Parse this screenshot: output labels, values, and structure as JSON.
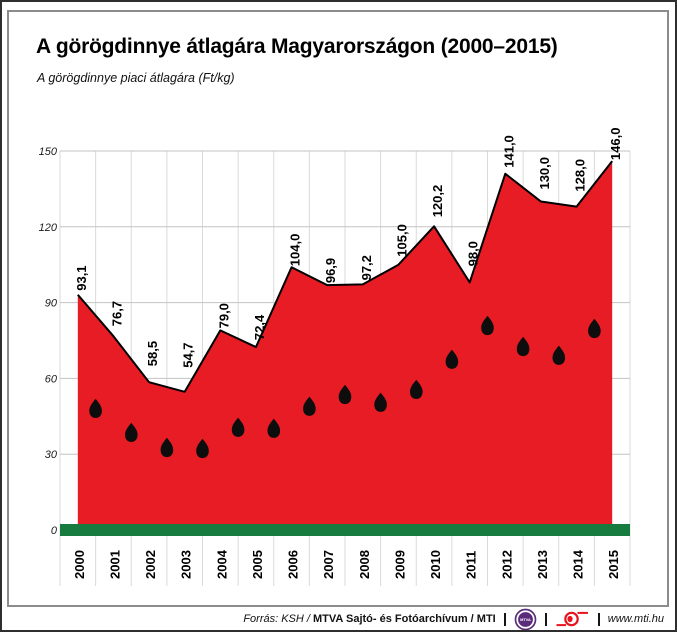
{
  "header": {
    "title": "A görögdinnye átlagára Magyarországon (2000–2015)",
    "subtitle": "A görögdinnye piaci átlagára (Ft/kg)"
  },
  "footer": {
    "source_prefix": "Forrás: KSH /",
    "source_main": "MTVA Sajtó- és Fotóarchívum / MTI",
    "mtva_logo_label": "MTVA",
    "website": "www.mti.hu"
  },
  "chart_data": {
    "type": "area",
    "title": "A görögdinnye átlagára Magyarországon (2000–2015)",
    "subtitle": "A görögdinnye piaci átlagára (Ft/kg)",
    "categories": [
      "2000",
      "2001",
      "2002",
      "2003",
      "2004",
      "2005",
      "2006",
      "2007",
      "2008",
      "2009",
      "2010",
      "2011",
      "2012",
      "2013",
      "2014",
      "2015"
    ],
    "values": [
      93.1,
      76.7,
      58.5,
      54.7,
      79.0,
      72.4,
      104.0,
      96.9,
      97.2,
      105.0,
      120.2,
      98.0,
      141.0,
      130.0,
      128.0,
      146.0
    ],
    "value_labels": [
      "93,1",
      "76,7",
      "58,5",
      "54,7",
      "79,0",
      "72,4",
      "104,0",
      "96,9",
      "97,2",
      "105,0",
      "120,2",
      "98,0",
      "141,0",
      "130,0",
      "128,0",
      "146,0"
    ],
    "unit": "Ft/kg",
    "ylim": [
      0,
      150
    ],
    "yticks": [
      0,
      30,
      60,
      90,
      120,
      150
    ],
    "ytick_labels": [
      "0",
      "30",
      "60",
      "90",
      "120",
      "150"
    ],
    "grid": true,
    "legend": "none",
    "style": "watermelon",
    "colors": {
      "area_red": "#e81c24",
      "outline_black": "#000000",
      "rind_green": "#177a3e",
      "seed_black": "#0d0d0d",
      "gridline_h": "#c3c3c3",
      "gridline_v": "#dadada"
    },
    "seeds": [
      {
        "x": 2000.5,
        "v": 48.3
      },
      {
        "x": 2001.5,
        "v": 38.8
      },
      {
        "x": 2002.5,
        "v": 32.8
      },
      {
        "x": 2003.5,
        "v": 32.4
      },
      {
        "x": 2004.5,
        "v": 40.8
      },
      {
        "x": 2005.5,
        "v": 40.4
      },
      {
        "x": 2006.5,
        "v": 49.1
      },
      {
        "x": 2007.5,
        "v": 53.8
      },
      {
        "x": 2008.5,
        "v": 50.7
      },
      {
        "x": 2009.5,
        "v": 55.8
      },
      {
        "x": 2010.5,
        "v": 67.7
      },
      {
        "x": 2011.5,
        "v": 81.1
      },
      {
        "x": 2012.5,
        "v": 72.8
      },
      {
        "x": 2013.5,
        "v": 69.3
      },
      {
        "x": 2014.5,
        "v": 79.9
      }
    ]
  }
}
